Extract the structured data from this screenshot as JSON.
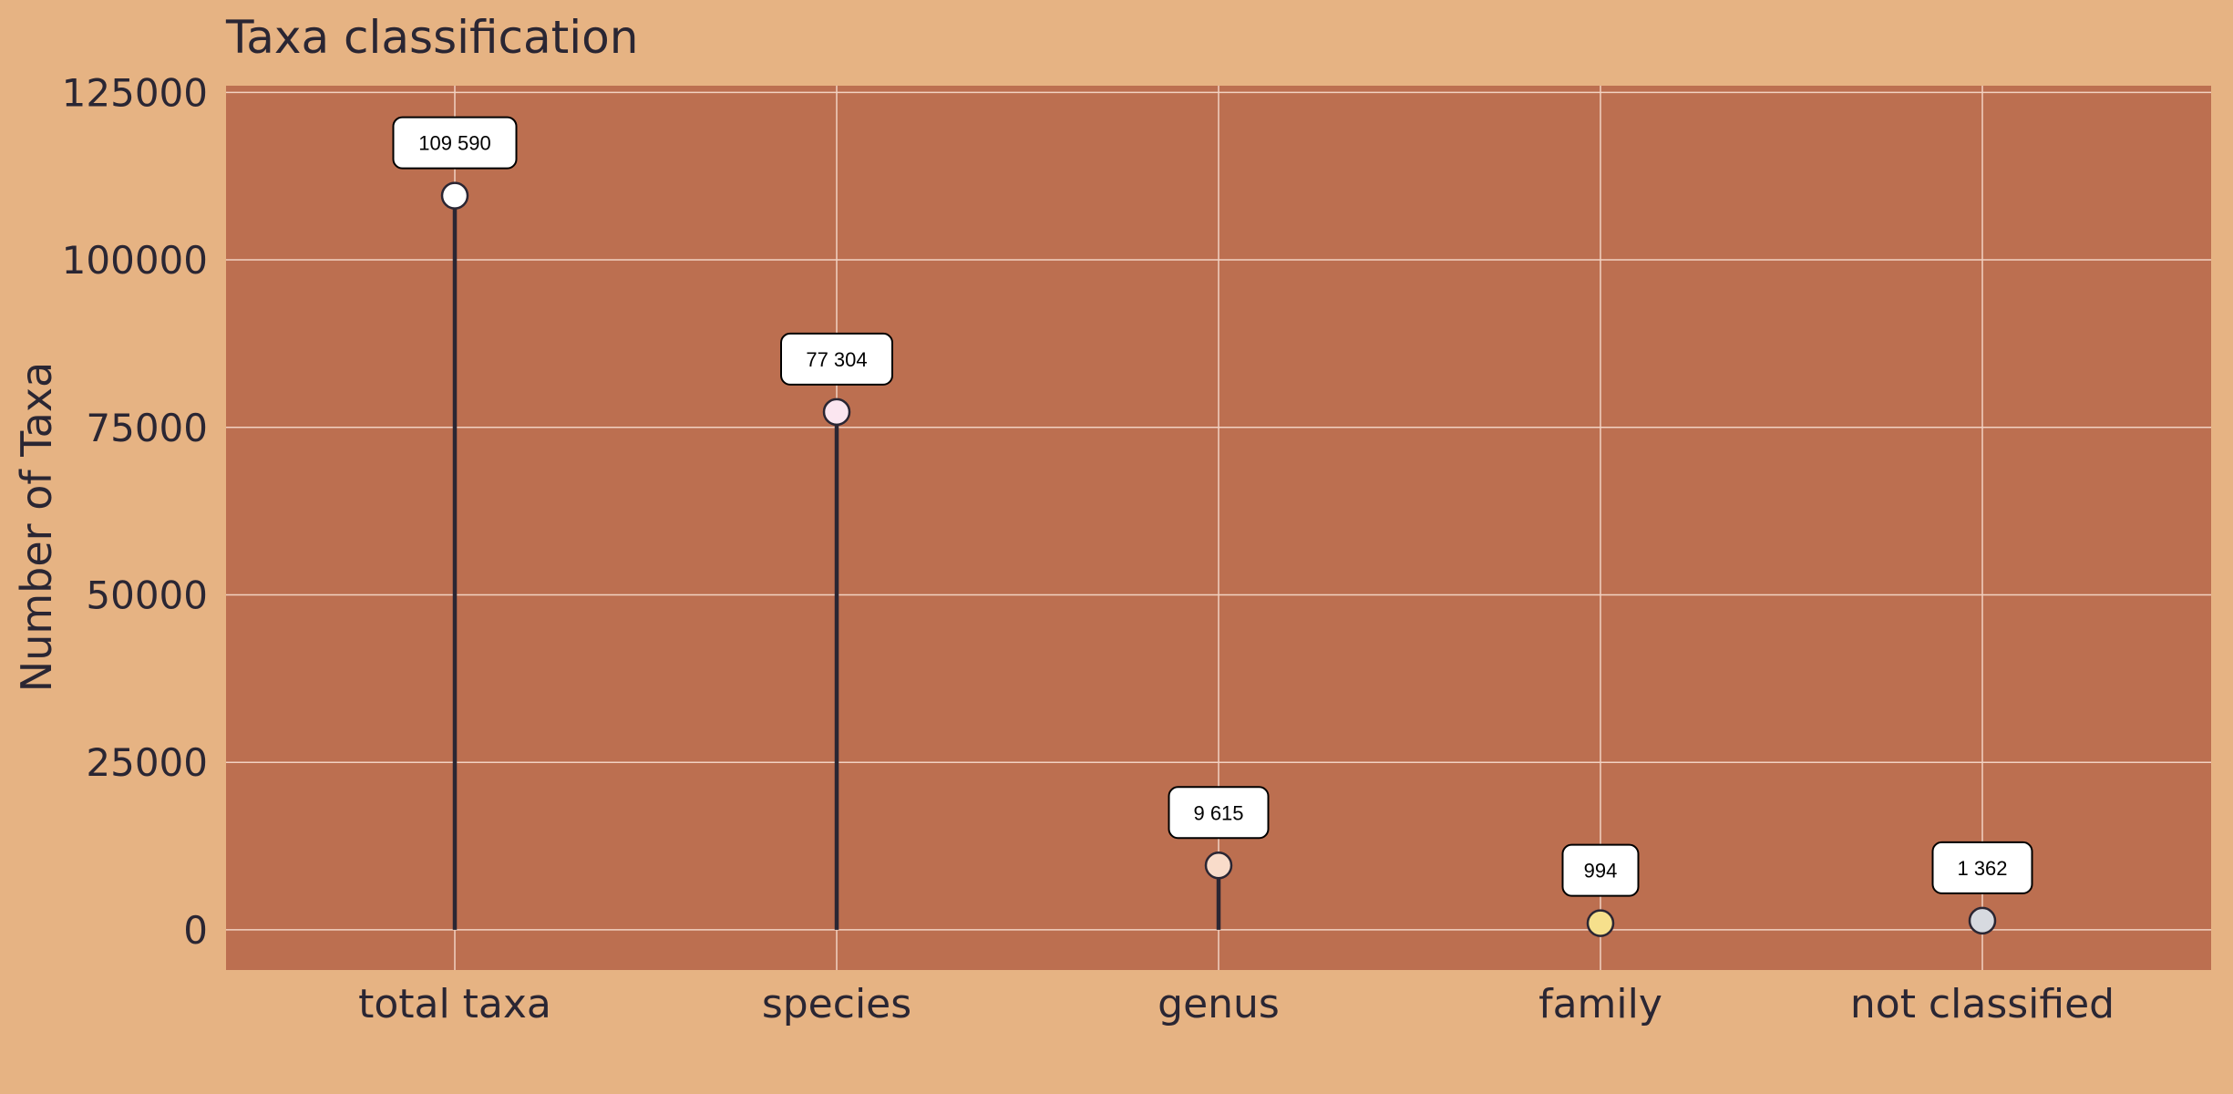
{
  "colors": {
    "page_background": "#e6b383",
    "plot_background": "#bc6f50",
    "grid": "#f2d2c2",
    "stem": "#2a2633",
    "text": "#2a2633"
  },
  "chart_data": {
    "type": "lollipop",
    "title": "Taxa classification",
    "xlabel": "",
    "ylabel": "Number of Taxa",
    "categories": [
      "total taxa",
      "species",
      "genus",
      "family",
      "not classified"
    ],
    "values": [
      109590,
      77304,
      9615,
      994,
      1362
    ],
    "data_labels": [
      "109 590",
      "77 304",
      "9 615",
      "994",
      "1 362"
    ],
    "marker_colors": [
      "#ffffff",
      "#fbe6f0",
      "#f9dcca",
      "#f6e08c",
      "#d7dae0"
    ],
    "yticks": [
      0,
      25000,
      50000,
      75000,
      100000,
      125000
    ],
    "ylim": [
      -6000,
      126000
    ],
    "grid": true,
    "legend": "none"
  }
}
